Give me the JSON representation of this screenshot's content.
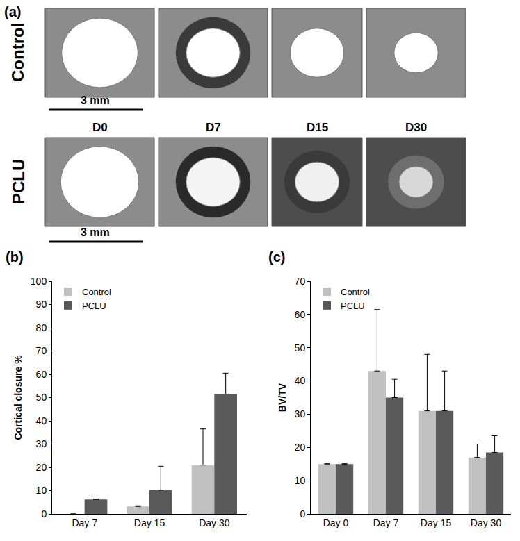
{
  "panel_a": {
    "label": "(a)",
    "rows": [
      "Control",
      "PCLU"
    ],
    "columns": [
      "D0",
      "D7",
      "D15",
      "D30"
    ],
    "scale_bar": "3 mm"
  },
  "chart_data": [
    {
      "type": "bar",
      "title": "(b)",
      "ylabel": "Cortical closure %",
      "categories": [
        "Day 7",
        "Day 15",
        "Day 30"
      ],
      "series": [
        {
          "name": "Control",
          "color": "#c0c0c0",
          "values": [
            0,
            3.2,
            21
          ],
          "errors": [
            0,
            0.3,
            15.5
          ]
        },
        {
          "name": "PCLU",
          "color": "#595959",
          "values": [
            6.2,
            10.2,
            51.5
          ],
          "errors": [
            0.2,
            10.3,
            9
          ]
        }
      ],
      "ylim": [
        0,
        100
      ],
      "yticks": [
        0,
        10,
        20,
        30,
        40,
        50,
        60,
        70,
        80,
        90,
        100
      ],
      "grid": false,
      "legend": "upper left"
    },
    {
      "type": "bar",
      "title": "(c)",
      "ylabel": "BV/TV",
      "categories": [
        "Day 0",
        "Day 7",
        "Day 15",
        "Day 30"
      ],
      "series": [
        {
          "name": "Control",
          "color": "#c0c0c0",
          "values": [
            15,
            43,
            31,
            17
          ],
          "errors": [
            0.2,
            18.5,
            17,
            4
          ]
        },
        {
          "name": "PCLU",
          "color": "#595959",
          "values": [
            15,
            35,
            31,
            18.5
          ],
          "errors": [
            0.2,
            5.5,
            12,
            5
          ]
        }
      ],
      "ylim": [
        0,
        70
      ],
      "yticks": [
        0,
        10,
        20,
        30,
        40,
        50,
        60,
        70
      ],
      "grid": false,
      "legend": "upper left"
    }
  ]
}
